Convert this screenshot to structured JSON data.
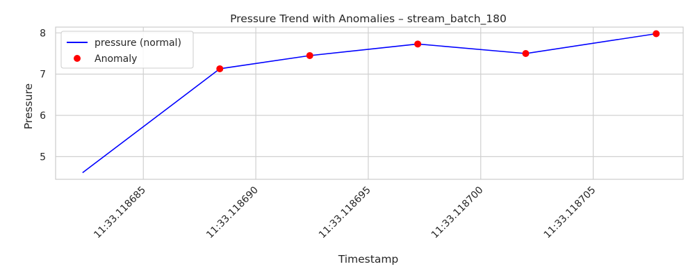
{
  "chart_data": {
    "type": "line",
    "title": "Pressure Trend with Anomalies – stream_batch_180",
    "xlabel": "Timestamp",
    "ylabel": "Pressure",
    "x": [
      118682.3,
      118688.4,
      118692.4,
      118697.2,
      118702.0,
      118707.8
    ],
    "series": [
      {
        "name": "pressure (normal)",
        "kind": "line",
        "color": "#0000ff",
        "y": [
          4.61,
          7.13,
          7.45,
          7.73,
          7.5,
          7.98
        ]
      },
      {
        "name": "Anomaly",
        "kind": "scatter",
        "color": "#ff0000",
        "x": [
          118688.4,
          118692.4,
          118697.2,
          118702.0,
          118707.8
        ],
        "y": [
          7.13,
          7.45,
          7.73,
          7.5,
          7.98
        ]
      }
    ],
    "x_ticks": [
      118685,
      118690,
      118695,
      118700,
      118705
    ],
    "x_tick_labels": [
      "11:33.118685",
      "11:33.118690",
      "11:33.118695",
      "11:33.118700",
      "11:33.118705"
    ],
    "y_ticks": [
      5,
      6,
      7,
      8
    ],
    "y_tick_labels": [
      "5",
      "6",
      "7",
      "8"
    ],
    "xlim": [
      118681.1,
      118709.0
    ],
    "ylim": [
      4.45,
      8.14
    ],
    "grid": true,
    "legend_position": "upper-left",
    "colors": {
      "grid": "#d0d0d0",
      "spine": "#cccccc",
      "background": "#ffffff"
    }
  }
}
